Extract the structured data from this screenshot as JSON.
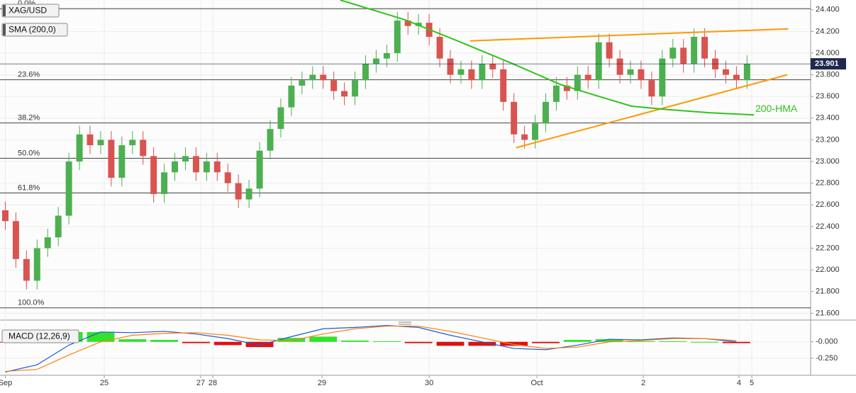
{
  "chart_data": {
    "type": "candlestick",
    "symbol": "XAG/USD",
    "indicator": "SMA (200,0)",
    "x": [
      0,
      1,
      2,
      3,
      4,
      5,
      6,
      7,
      8,
      9,
      10,
      11,
      12,
      13,
      14,
      15,
      16,
      17,
      18,
      19,
      20,
      21,
      22,
      23,
      24,
      25,
      26,
      27,
      28,
      29,
      30,
      31,
      32,
      33,
      34,
      35,
      36,
      37,
      38,
      39,
      40,
      41,
      42,
      43,
      44,
      45,
      46,
      47,
      48,
      49,
      50,
      51,
      52,
      53,
      54,
      55,
      56,
      57,
      58,
      59,
      60,
      61,
      62,
      63,
      64,
      65,
      66,
      67,
      68,
      69,
      70
    ],
    "open": [
      22.55,
      22.45,
      22.1,
      21.9,
      22.2,
      22.3,
      22.5,
      23.0,
      23.25,
      23.15,
      23.2,
      22.85,
      23.15,
      23.2,
      23.05,
      22.7,
      22.9,
      23.0,
      23.05,
      22.9,
      23.0,
      22.9,
      22.8,
      22.65,
      22.75,
      23.1,
      23.3,
      23.5,
      23.7,
      23.75,
      23.8,
      23.75,
      23.65,
      23.6,
      23.75,
      23.9,
      23.95,
      24.0,
      24.3,
      24.25,
      24.28,
      24.15,
      23.95,
      23.8,
      23.85,
      23.75,
      23.9,
      23.85,
      23.55,
      23.25,
      23.2,
      23.35,
      23.55,
      23.7,
      23.65,
      23.8,
      23.75,
      24.1,
      23.95,
      23.8,
      23.85,
      23.75,
      23.6,
      23.95,
      24.05,
      23.9,
      24.15,
      23.95,
      23.85,
      23.8,
      23.75
    ],
    "high": [
      22.63,
      22.53,
      22.18,
      22.28,
      22.38,
      22.58,
      23.08,
      23.33,
      23.33,
      23.28,
      23.28,
      23.23,
      23.28,
      23.28,
      23.13,
      22.98,
      23.08,
      23.13,
      23.13,
      23.08,
      23.08,
      22.98,
      22.88,
      22.83,
      23.18,
      23.38,
      23.58,
      23.78,
      23.83,
      23.88,
      23.88,
      23.83,
      23.73,
      23.83,
      23.98,
      24.03,
      24.08,
      24.38,
      24.38,
      24.36,
      24.36,
      24.23,
      24.03,
      23.93,
      23.93,
      23.98,
      23.98,
      23.93,
      23.63,
      23.33,
      23.43,
      23.63,
      23.78,
      23.78,
      23.88,
      23.88,
      24.18,
      24.18,
      24.03,
      23.93,
      23.93,
      23.83,
      24.03,
      24.13,
      24.13,
      24.23,
      24.23,
      24.03,
      23.93,
      23.88,
      23.98
    ],
    "low": [
      22.37,
      22.02,
      21.82,
      21.82,
      22.12,
      22.22,
      22.42,
      22.92,
      23.07,
      23.07,
      22.77,
      22.77,
      23.07,
      22.97,
      22.62,
      22.62,
      22.82,
      22.92,
      22.82,
      22.82,
      22.82,
      22.72,
      22.57,
      22.57,
      22.67,
      23.02,
      23.22,
      23.42,
      23.62,
      23.67,
      23.67,
      23.57,
      23.52,
      23.52,
      23.67,
      23.82,
      23.87,
      23.92,
      24.17,
      24.17,
      24.07,
      23.87,
      23.72,
      23.72,
      23.67,
      23.67,
      23.77,
      23.47,
      23.17,
      23.12,
      23.12,
      23.27,
      23.47,
      23.57,
      23.57,
      23.67,
      23.67,
      23.87,
      23.72,
      23.72,
      23.67,
      23.52,
      23.52,
      23.87,
      23.82,
      23.82,
      23.87,
      23.77,
      23.72,
      23.67,
      23.67
    ],
    "close": [
      22.45,
      22.1,
      21.9,
      22.2,
      22.3,
      22.5,
      23.0,
      23.25,
      23.15,
      23.2,
      22.85,
      23.15,
      23.2,
      23.05,
      22.7,
      22.9,
      23.0,
      23.05,
      22.9,
      23.0,
      22.9,
      22.8,
      22.65,
      22.75,
      23.1,
      23.3,
      23.5,
      23.7,
      23.75,
      23.8,
      23.75,
      23.65,
      23.6,
      23.75,
      23.9,
      23.95,
      24.0,
      24.3,
      24.25,
      24.28,
      24.15,
      23.95,
      23.8,
      23.85,
      23.75,
      23.9,
      23.85,
      23.55,
      23.25,
      23.2,
      23.35,
      23.55,
      23.7,
      23.65,
      23.8,
      23.75,
      24.1,
      23.95,
      23.8,
      23.85,
      23.75,
      23.6,
      23.95,
      24.05,
      23.9,
      24.15,
      23.95,
      23.85,
      23.8,
      23.75,
      23.9
    ],
    "color_up": "#4caf50",
    "color_down": "#d9534f",
    "xlim": [
      -0.5,
      76
    ],
    "xticks": [
      {
        "value": 0,
        "label": "Sep"
      },
      {
        "value": 9.34,
        "label": "25"
      },
      {
        "value": 18.44,
        "label": "27"
      },
      {
        "value": 19.58,
        "label": "28"
      },
      {
        "value": 29.89,
        "label": "29"
      },
      {
        "value": 40.0,
        "label": "30"
      },
      {
        "value": 50.17,
        "label": "Oct"
      },
      {
        "value": 60.21,
        "label": "2"
      },
      {
        "value": 69.24,
        "label": "4"
      },
      {
        "value": 70.45,
        "label": "5"
      }
    ],
    "ylim": [
      21.55,
      24.49
    ],
    "yticks": [
      {
        "value": 21.6,
        "label": "21.600"
      },
      {
        "value": 21.8,
        "label": "21.800"
      },
      {
        "value": 22.0,
        "label": "22.000"
      },
      {
        "value": 22.2,
        "label": "22.200"
      },
      {
        "value": 22.4,
        "label": "22.400"
      },
      {
        "value": 22.6,
        "label": "22.600"
      },
      {
        "value": 22.8,
        "label": "22.800"
      },
      {
        "value": 23.0,
        "label": "23.000"
      },
      {
        "value": 23.2,
        "label": "23.200"
      },
      {
        "value": 23.4,
        "label": "23.400"
      },
      {
        "value": 23.6,
        "label": "23.600"
      },
      {
        "value": 23.8,
        "label": "23.800"
      },
      {
        "value": 24.0,
        "label": "24.000"
      },
      {
        "value": 24.2,
        "label": "24.200"
      },
      {
        "value": 24.4,
        "label": "24.400"
      }
    ],
    "grid": true,
    "last_price": {
      "value": 23.901,
      "label": "23.901",
      "color": "#1c2a4d"
    },
    "fib_levels": [
      {
        "label": "0.0%",
        "value": 24.41
      },
      {
        "label": "23.6%",
        "value": 23.754
      },
      {
        "label": "38.2%",
        "value": 23.356
      },
      {
        "label": "50.0%",
        "value": 23.03
      },
      {
        "label": "61.8%",
        "value": 22.71
      },
      {
        "label": "100.0%",
        "value": 21.65
      }
    ],
    "trend_lines": [
      {
        "color": "#ff9800",
        "x": [
          43.87,
          73.9
        ],
        "values": [
          24.113,
          24.224
        ]
      },
      {
        "color": "#ff9800",
        "x": [
          48.2,
          73.8
        ],
        "values": [
          23.127,
          23.8
        ]
      }
    ],
    "hma": {
      "label": "200-HMA",
      "color": "#2ec41a",
      "x": [
        31.6,
        37.65,
        43.0,
        47.7,
        52.4,
        55.7,
        59.1,
        62.4,
        66.4,
        70.65
      ],
      "values": [
        24.49,
        24.31,
        24.1,
        23.91,
        23.71,
        23.61,
        23.51,
        23.48,
        23.45,
        23.43
      ]
    },
    "macd": {
      "label": "MACD (12,26,9)",
      "x": [
        0,
        3,
        6,
        9,
        12,
        15,
        18,
        21,
        24,
        27,
        30,
        33,
        36,
        39,
        42,
        45,
        48,
        51,
        54,
        57,
        60,
        63,
        66,
        69
      ],
      "macd": [
        -0.46,
        -0.35,
        -0.05,
        0.15,
        0.14,
        0.16,
        0.12,
        0.05,
        -0.05,
        0.08,
        0.2,
        0.22,
        0.25,
        0.22,
        0.1,
        0.0,
        -0.1,
        -0.12,
        -0.05,
        0.04,
        0.03,
        0.06,
        0.05,
        0.0
      ],
      "signal": [
        -0.45,
        -0.42,
        -0.2,
        0.0,
        0.1,
        0.13,
        0.14,
        0.1,
        0.03,
        0.02,
        0.12,
        0.2,
        0.24,
        0.24,
        0.16,
        0.06,
        -0.04,
        -0.1,
        -0.08,
        0.0,
        0.02,
        0.05,
        0.05,
        0.02
      ],
      "histogram": [
        -0.01,
        0.07,
        0.15,
        0.15,
        0.04,
        0.03,
        -0.02,
        -0.05,
        -0.08,
        0.06,
        0.08,
        0.02,
        0.01,
        -0.02,
        -0.06,
        -0.06,
        -0.06,
        -0.02,
        0.03,
        0.04,
        0.01,
        0.01,
        0,
        -0.02
      ],
      "macd_color": "#1e5bd8",
      "signal_color": "#ff7f0e",
      "hist_up_color": "#33e22a",
      "hist_down_color": "#e01010",
      "ylim": [
        -0.51,
        0.3
      ],
      "yticks": [
        {
          "value": 0,
          "label": "-0.000"
        },
        {
          "value": -0.25,
          "label": "-0.250"
        }
      ]
    }
  }
}
